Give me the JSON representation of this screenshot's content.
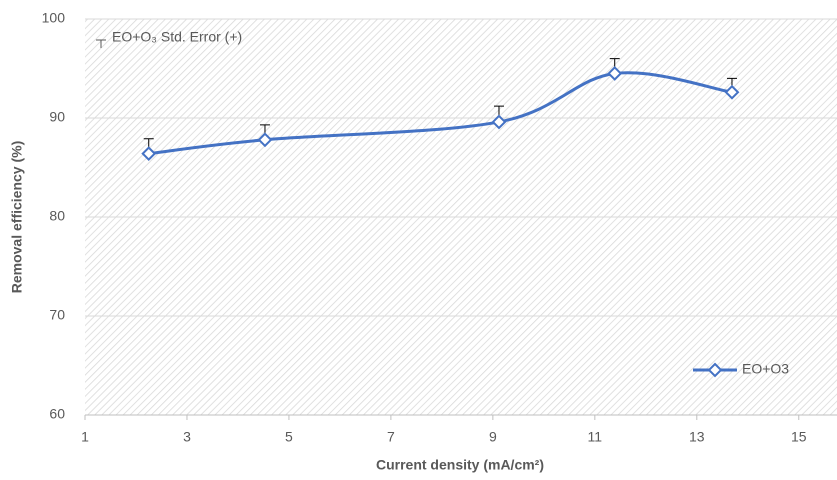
{
  "chart_data": {
    "type": "line",
    "xlabel": "Current density (mA/cm²)",
    "ylabel": "Removal efficiency (%)",
    "annotation": "EO+O₃ Std. Error (+)",
    "x": [
      2.25,
      4.53,
      9.12,
      11.39,
      13.69
    ],
    "series": [
      {
        "name": "EO+O3",
        "color": "#4472c4",
        "values": [
          86.4,
          87.8,
          89.6,
          94.5,
          92.6
        ],
        "errors": [
          1.5,
          1.5,
          1.6,
          1.5,
          1.4
        ]
      }
    ],
    "xlim": [
      1,
      15.75
    ],
    "xticks": [
      1,
      3,
      5,
      7,
      9,
      11,
      13,
      15
    ],
    "ylim": [
      60,
      100
    ],
    "yticks": [
      60,
      70,
      80,
      90,
      100
    ],
    "grid": true,
    "legend": "lower right"
  }
}
